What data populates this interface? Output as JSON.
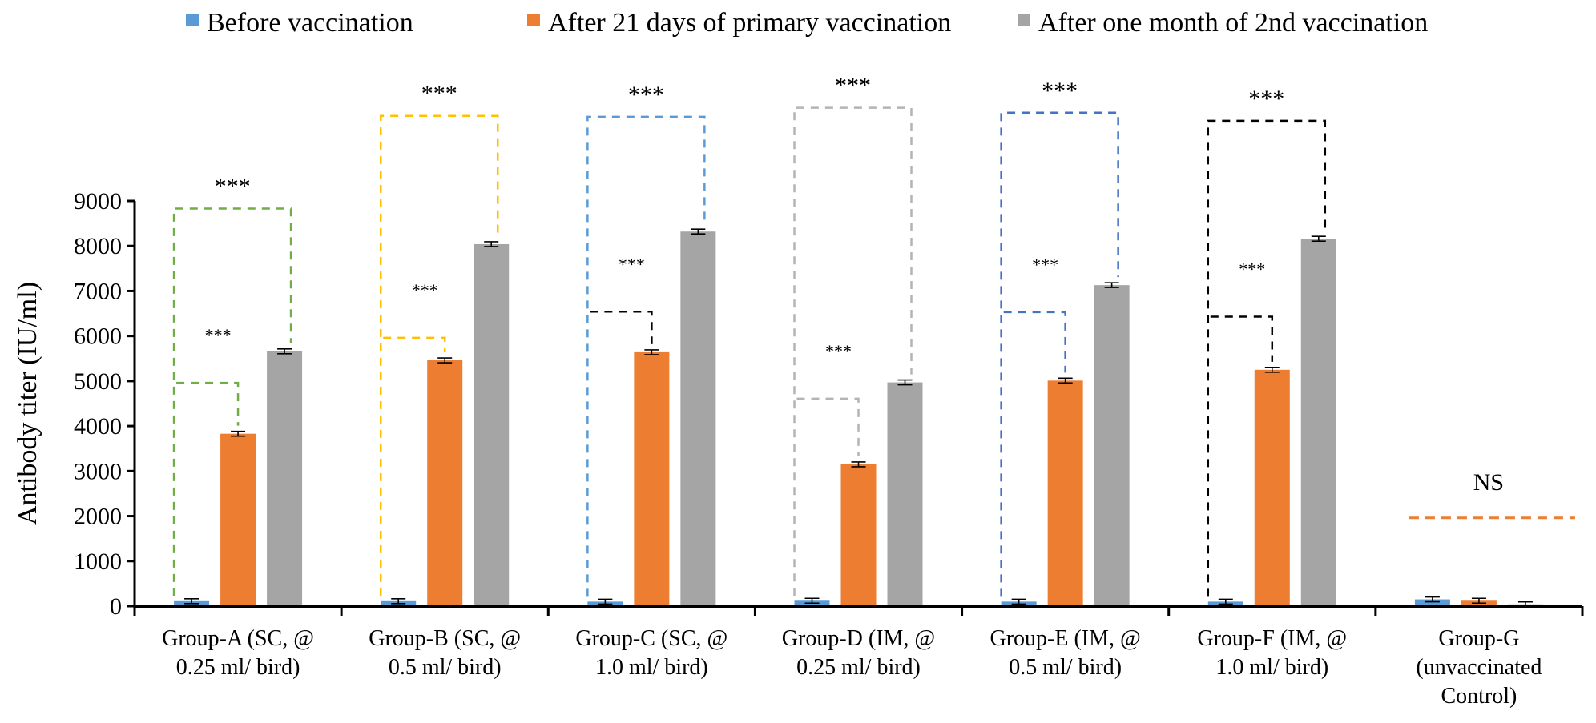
{
  "chart_data": {
    "type": "bar",
    "ylabel": "Antibody titer (IU/ml)",
    "ylim": [
      0,
      9000
    ],
    "yticks": [
      0,
      1000,
      2000,
      3000,
      4000,
      5000,
      6000,
      7000,
      8000,
      9000
    ],
    "categories": [
      [
        "Group-A (SC, @",
        "0.25 ml/ bird)"
      ],
      [
        "Group-B (SC, @",
        "0.5 ml/ bird)"
      ],
      [
        "Group-C (SC, @",
        "1.0 ml/ bird)"
      ],
      [
        "Group-D (IM, @",
        "0.25 ml/ bird)"
      ],
      [
        "Group-E (IM, @",
        "0.5 ml/ bird)"
      ],
      [
        "Group-F (IM, @",
        "1.0 ml/ bird)"
      ],
      [
        "Group-G",
        "(unvaccinated",
        "Control)"
      ]
    ],
    "series": [
      {
        "name": "Before vaccination",
        "color": "#5b9bd5",
        "values": [
          110,
          110,
          100,
          120,
          100,
          100,
          150
        ]
      },
      {
        "name": "After 21 days of primary vaccination",
        "color": "#ed7d31",
        "values": [
          3830,
          5460,
          5640,
          3150,
          5010,
          5250,
          120
        ]
      },
      {
        "name": "After one month of 2nd vaccination",
        "color": "#a5a5a5",
        "values": [
          5660,
          8040,
          8320,
          4970,
          7130,
          8160,
          40
        ]
      }
    ],
    "annotations": {
      "outer_sig": [
        "***",
        "***",
        "***",
        "***",
        "***",
        "***"
      ],
      "inner_sig": [
        "***",
        "***",
        "***",
        "***",
        "***",
        "***"
      ],
      "control_label": "NS"
    },
    "bracket_colors": {
      "outer": [
        "#70ad47",
        "#ffc000",
        "#5b9bd5",
        "#b4b4b4",
        "#4472c4",
        "#000000"
      ],
      "inner": [
        "#70ad47",
        "#ffc000",
        "#000000",
        "#b4b4b4",
        "#4472c4",
        "#000000"
      ],
      "control": "#ed7d31"
    }
  }
}
